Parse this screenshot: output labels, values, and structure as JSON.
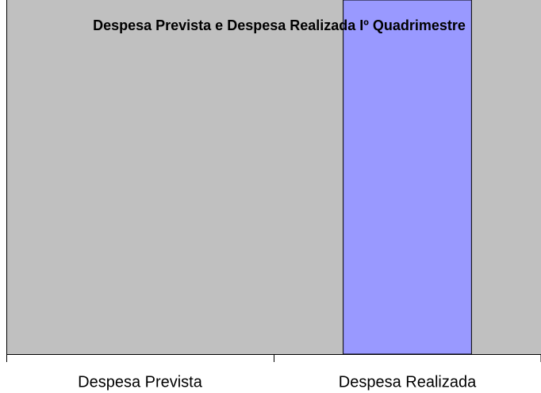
{
  "chart_data": {
    "type": "bar",
    "title": "Despesa Prevista e Despesa Realizada Iº Quadrimestre",
    "categories": [
      "Despesa Prevista",
      "Despesa Realizada"
    ],
    "values": [
      0,
      1
    ],
    "color": "#9999ff",
    "ylim": [
      0,
      1
    ]
  }
}
